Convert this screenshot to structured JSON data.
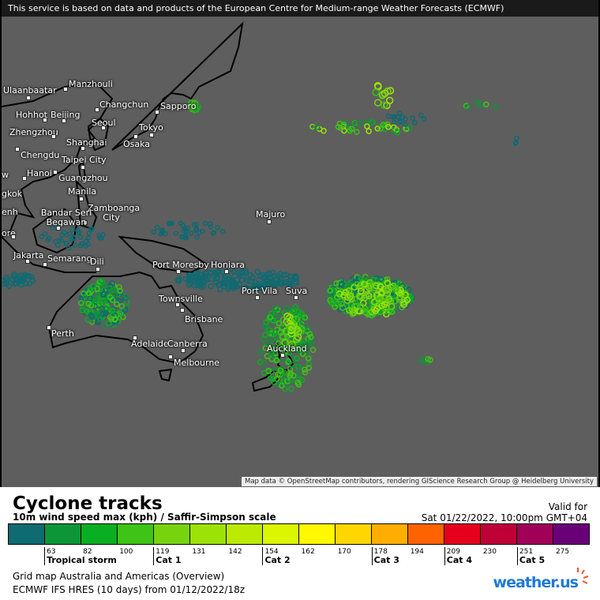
{
  "banner": "This service is based on data and products of the European Centre for Medium-range Weather Forecasts (ECMWF)",
  "attribution": "Map data © OpenStreetMap contributors, rendering GIScience Research Group @ Heidelberg University",
  "cities": [
    {
      "name": "Ulaanbaatar"
    },
    {
      "name": "Manzhouli"
    },
    {
      "name": "Changchun"
    },
    {
      "name": "Hohhot"
    },
    {
      "name": "Beijing"
    },
    {
      "name": "Seoul"
    },
    {
      "name": "Zhengzhou"
    },
    {
      "name": "Tokyo"
    },
    {
      "name": "Osaka"
    },
    {
      "name": "Shanghai"
    },
    {
      "name": "Chengdu"
    },
    {
      "name": "Taipei City"
    },
    {
      "name": "Hanoi"
    },
    {
      "name": "Guangzhou"
    },
    {
      "name": "Manila"
    },
    {
      "name": "Sapporo"
    },
    {
      "name": "Zamboanga City"
    },
    {
      "name": "Bandar Seri Begawan"
    },
    {
      "name": "Majuro"
    },
    {
      "name": "Jakarta"
    },
    {
      "name": "Semarang"
    },
    {
      "name": "Dili"
    },
    {
      "name": "Port Moresby"
    },
    {
      "name": "Honiara"
    },
    {
      "name": "Port Vila"
    },
    {
      "name": "Suva"
    },
    {
      "name": "Townsville"
    },
    {
      "name": "Brisbane"
    },
    {
      "name": "Perth"
    },
    {
      "name": "Adelaide"
    },
    {
      "name": "Canberra"
    },
    {
      "name": "Melbourne"
    },
    {
      "name": "Auckland"
    },
    {
      "name": "w"
    },
    {
      "name": "gkok"
    },
    {
      "name": "enh"
    },
    {
      "name": "ore"
    }
  ],
  "legend": {
    "title": "Cyclone tracks",
    "subtitle": "10m wind speed max (kph) / Saffir-Simpson scale",
    "valid_for": "Valid for",
    "valid_date": "Sat 01/22/2022, 10:00pm GMT+04",
    "colors": [
      "#0e6b72",
      "#0c9638",
      "#0aae22",
      "#3ec317",
      "#78d30f",
      "#9de206",
      "#bcea02",
      "#dcf500",
      "#fff800",
      "#ffd600",
      "#ffae00",
      "#ff6300",
      "#e6001c",
      "#bf0036",
      "#a00058",
      "#6a0078"
    ],
    "ticks": [
      "63",
      "82",
      "100",
      "119",
      "131",
      "142",
      "154",
      "162",
      "170",
      "178",
      "194",
      "209",
      "230",
      "251",
      "275"
    ],
    "categories": [
      {
        "label": "Tropical storm",
        "at": 1
      },
      {
        "label": "Cat 1",
        "at": 4
      },
      {
        "label": "Cat 2",
        "at": 7
      },
      {
        "label": "Cat 3",
        "at": 10
      },
      {
        "label": "Cat 4",
        "at": 12
      },
      {
        "label": "Cat 5",
        "at": 14
      }
    ],
    "grid": "Grid map Australia and Americas (Overview)",
    "model": "ECMWF IFS HRES (10 days) from  01/12/2022/18z",
    "logo": "weather.us"
  }
}
